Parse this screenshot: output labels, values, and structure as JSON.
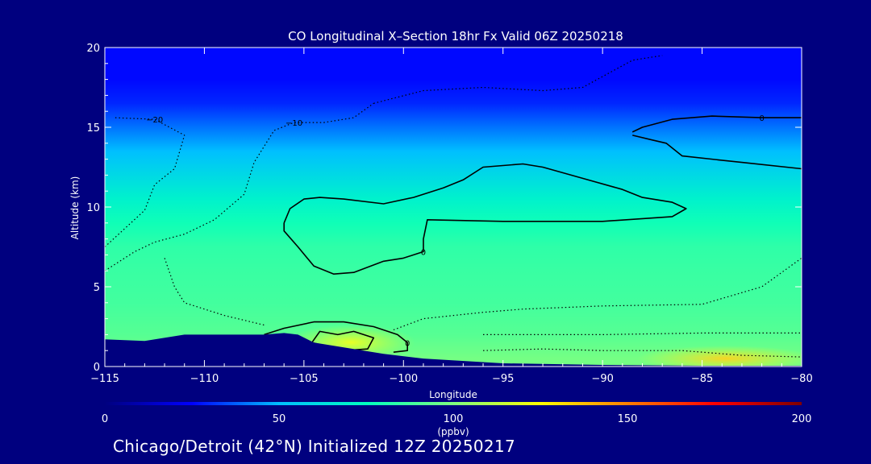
{
  "chart_data": {
    "type": "heatmap",
    "title": "CO Longitudinal X–Section 18hr  Fx Valid 06Z 20250218",
    "xlabel": "Longitude",
    "ylabel": "Altitude (km)",
    "xlim": [
      -115,
      -80
    ],
    "ylim": [
      0,
      20
    ],
    "x_ticks": [
      -115,
      -110,
      -105,
      -100,
      -95,
      -90,
      -85,
      -80
    ],
    "x_tick_labels": [
      "−115",
      "−110",
      "−105",
      "−100",
      "−95",
      "−90",
      "−85",
      "−80"
    ],
    "y_ticks": [
      0,
      5,
      10,
      15,
      20
    ],
    "y_tick_labels": [
      "0",
      "5",
      "10",
      "15",
      "20"
    ],
    "colorbar": {
      "min": 0,
      "max": 200,
      "ticks": [
        0,
        50,
        100,
        150,
        200
      ],
      "tick_labels": [
        "0",
        "50",
        "100",
        "150",
        "200"
      ],
      "units": "(ppbv)",
      "colormap": "rainbow",
      "stops": [
        "#00007f",
        "#0000ff",
        "#00bfff",
        "#00ffbf",
        "#7fff7f",
        "#ffff00",
        "#ff7f00",
        "#ff0000",
        "#7f0000"
      ]
    },
    "background_profile": [
      {
        "altitude": 0.5,
        "value": 98
      },
      {
        "altitude": 2,
        "value": 92
      },
      {
        "altitude": 4,
        "value": 88
      },
      {
        "altitude": 6,
        "value": 86
      },
      {
        "altitude": 7.5,
        "value": 84
      },
      {
        "altitude": 9,
        "value": 78
      },
      {
        "altitude": 10.5,
        "value": 70
      },
      {
        "altitude": 12,
        "value": 60
      },
      {
        "altitude": 13.5,
        "value": 50
      },
      {
        "altitude": 15,
        "value": 40
      },
      {
        "altitude": 16.5,
        "value": 30
      },
      {
        "altitude": 18,
        "value": 26
      },
      {
        "altitude": 20,
        "value": 26
      }
    ],
    "surface_enhancement": [
      {
        "lon": -103,
        "alt": 1.4,
        "value": 118
      },
      {
        "lon": -85,
        "alt": 0.4,
        "value": 125
      }
    ],
    "contours": [
      {
        "level": 0,
        "label": "0",
        "style": "solid",
        "points": [
          [
            -106,
            9.0
          ],
          [
            -105.7,
            9.9
          ],
          [
            -105,
            10.5
          ],
          [
            -104.2,
            10.6
          ],
          [
            -103,
            10.5
          ],
          [
            -101,
            10.2
          ],
          [
            -99.5,
            10.6
          ],
          [
            -98,
            11.2
          ],
          [
            -97,
            11.7
          ],
          [
            -96,
            12.5
          ],
          [
            -94,
            12.7
          ],
          [
            -93,
            12.5
          ],
          [
            -91,
            11.8
          ],
          [
            -89,
            11.1
          ],
          [
            -88,
            10.6
          ],
          [
            -86.5,
            10.3
          ],
          [
            -85.8,
            9.9
          ],
          [
            -86.5,
            9.4
          ],
          [
            -90,
            9.1
          ],
          [
            -95,
            9.1
          ],
          [
            -98.8,
            9.2
          ],
          [
            -99,
            8.0
          ],
          [
            -99,
            7.2
          ],
          [
            -100,
            6.8
          ],
          [
            -101,
            6.6
          ],
          [
            -102.5,
            5.9
          ],
          [
            -103.5,
            5.8
          ],
          [
            -104.5,
            6.3
          ],
          [
            -105.3,
            7.5
          ],
          [
            -106,
            8.5
          ],
          [
            -106,
            9.0
          ]
        ]
      },
      {
        "level": 0,
        "label": "0",
        "style": "solid",
        "points": [
          [
            -88.5,
            14.7
          ],
          [
            -88,
            15.0
          ],
          [
            -86.5,
            15.5
          ],
          [
            -84.5,
            15.7
          ],
          [
            -82,
            15.6
          ],
          [
            -80,
            15.6
          ]
        ]
      },
      {
        "level": 0,
        "label": "",
        "style": "solid",
        "points": [
          [
            -88.5,
            14.5
          ],
          [
            -87.5,
            14.2
          ],
          [
            -86.8,
            14.0
          ],
          [
            -86,
            13.2
          ],
          [
            -83,
            12.8
          ],
          [
            -80,
            12.4
          ]
        ]
      },
      {
        "level": 0,
        "label": "0",
        "style": "solid",
        "points": [
          [
            -107,
            2.0
          ],
          [
            -106,
            2.4
          ],
          [
            -104.5,
            2.8
          ],
          [
            -103,
            2.8
          ],
          [
            -101.5,
            2.5
          ],
          [
            -100.3,
            2.0
          ],
          [
            -99.8,
            1.5
          ],
          [
            -99.8,
            1.0
          ],
          [
            -100.5,
            0.9
          ]
        ]
      },
      {
        "level": 10,
        "label": "",
        "style": "solid",
        "points": [
          [
            -104.6,
            1.5
          ],
          [
            -104.2,
            2.2
          ],
          [
            -103.3,
            2.0
          ],
          [
            -102.5,
            2.2
          ],
          [
            -101.5,
            1.8
          ],
          [
            -101.8,
            1.1
          ],
          [
            -103,
            1.0
          ],
          [
            -104.6,
            1.5
          ]
        ]
      },
      {
        "level": -10,
        "label": "−10",
        "style": "dotted",
        "points": [
          [
            -115,
            6.0
          ],
          [
            -113.5,
            7.2
          ],
          [
            -112.5,
            7.8
          ],
          [
            -111,
            8.3
          ],
          [
            -109.5,
            9.2
          ],
          [
            -108,
            10.8
          ],
          [
            -107.5,
            12.8
          ],
          [
            -106.5,
            14.8
          ],
          [
            -105.5,
            15.3
          ],
          [
            -104,
            15.3
          ],
          [
            -102.5,
            15.6
          ],
          [
            -101.5,
            16.5
          ]
        ]
      },
      {
        "level": -10,
        "label": "",
        "style": "dotted",
        "points": [
          [
            -101.5,
            16.5
          ],
          [
            -99,
            17.3
          ],
          [
            -96,
            17.5
          ],
          [
            -93,
            17.3
          ],
          [
            -91,
            17.5
          ],
          [
            -88.5,
            19.2
          ],
          [
            -87,
            19.5
          ]
        ]
      },
      {
        "level": -10,
        "label": "",
        "style": "dotted",
        "points": [
          [
            -112,
            6.8
          ],
          [
            -111.5,
            5.0
          ],
          [
            -111,
            4.0
          ],
          [
            -109,
            3.2
          ],
          [
            -107,
            2.6
          ]
        ]
      },
      {
        "level": -20,
        "label": "−20",
        "style": "dotted",
        "points": [
          [
            -115,
            7.5
          ],
          [
            -113,
            9.8
          ],
          [
            -112.5,
            11.4
          ],
          [
            -111.5,
            12.4
          ],
          [
            -111,
            14.5
          ],
          [
            -112.5,
            15.5
          ],
          [
            -114.5,
            15.6
          ]
        ]
      },
      {
        "level": -10,
        "label": "",
        "style": "dotted",
        "points": [
          [
            -100.5,
            2.3
          ],
          [
            -99,
            3.0
          ],
          [
            -96,
            3.4
          ],
          [
            -94,
            3.6
          ],
          [
            -90,
            3.8
          ],
          [
            -85,
            3.9
          ],
          [
            -82,
            5.0
          ],
          [
            -80,
            6.8
          ]
        ]
      },
      {
        "level": 0,
        "label": "",
        "style": "dotted",
        "points": [
          [
            -96,
            2.0
          ],
          [
            -90,
            2.0
          ],
          [
            -85,
            2.1
          ],
          [
            -80,
            2.1
          ]
        ]
      },
      {
        "level": 10,
        "label": "",
        "style": "dotted",
        "points": [
          [
            -96,
            1.0
          ],
          [
            -93,
            1.1
          ],
          [
            -90,
            1.0
          ],
          [
            -86,
            1.0
          ],
          [
            -83,
            0.7
          ],
          [
            -80,
            0.6
          ]
        ]
      }
    ],
    "terrain": [
      [
        -115,
        1.7
      ],
      [
        -113,
        1.6
      ],
      [
        -111,
        2.0
      ],
      [
        -110.5,
        2.0
      ],
      [
        -107,
        2.0
      ],
      [
        -106,
        2.1
      ],
      [
        -105.3,
        2.0
      ],
      [
        -104.5,
        1.5
      ],
      [
        -103,
        1.2
      ],
      [
        -101,
        0.8
      ],
      [
        -99,
        0.5
      ],
      [
        -95,
        0.2
      ],
      [
        -90,
        0.1
      ],
      [
        -85,
        0.05
      ],
      [
        -80,
        0.05
      ]
    ]
  },
  "footer": {
    "caption": "Chicago/Detroit (42°N) Initialized 12Z 20250217"
  },
  "colors": {
    "background": "#00007f",
    "foreground": "#ffffff",
    "contour": "#000000",
    "terrain": "#00007f"
  }
}
